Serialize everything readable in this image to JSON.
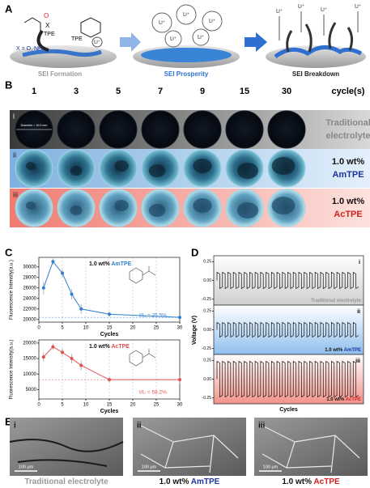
{
  "panel_a": {
    "label": "A",
    "x_def": "X = O, NH",
    "tpe": [
      "TPE",
      "TPE"
    ],
    "o": "O",
    "x": "X",
    "li": [
      "Li⁺",
      "Li⁺",
      "Li⁺",
      "Li⁺",
      "Li⁺",
      "Li⁺"
    ],
    "li_down": [
      "Li⁺",
      "Li⁺",
      "Li⁺",
      "Li⁺"
    ],
    "stages": [
      "SEI Formation",
      "SEI Prosperity",
      "SEI Breakdown"
    ]
  },
  "panel_b": {
    "label": "B",
    "cycles": [
      "1",
      "3",
      "5",
      "7",
      "9",
      "15",
      "30"
    ],
    "cycles_title": "cycle(s)",
    "diameter": "Diameter = 15.0 mm",
    "rows": [
      {
        "numeral": "i",
        "line1": "Traditional",
        "line2": "electrolyte"
      },
      {
        "numeral": "ii",
        "line1": "1.0 wt%",
        "line2": "AmTPE"
      },
      {
        "numeral": "iii",
        "line1": "1.0 wt%",
        "line2": "AcTPE"
      }
    ]
  },
  "panel_c": {
    "label": "C"
  },
  "chart_data": [
    {
      "type": "line",
      "x_label": "Cycles",
      "y_label": "Fluorescence Intensity(a.u.)",
      "prefix": "1.0 wt%",
      "ratio_label": "I/I₀ = 25.5%",
      "x": [
        1,
        3,
        5,
        7,
        9,
        15,
        30
      ],
      "xlim": [
        0,
        30
      ],
      "xticks": [
        0,
        5,
        10,
        15,
        20,
        25,
        30
      ],
      "grid": true,
      "ylim": [
        19500,
        31800
      ],
      "yticks": [
        20000,
        22000,
        24000,
        26000,
        28000,
        30000
      ],
      "series": [
        {
          "name": "AmTPE",
          "color": "#2f7fd0",
          "values": [
            26000,
            31000,
            28800,
            24800,
            22000,
            21000,
            20400
          ],
          "errors": [
            1200,
            600,
            800,
            1000,
            900,
            500,
            300
          ]
        }
      ]
    },
    {
      "type": "line",
      "x_label": "Cycles",
      "y_label": "Fluorescence Intensity(a.u.)",
      "prefix": "1.0 wt%",
      "ratio_label": "I/I₀ = 58.2%",
      "x": [
        1,
        3,
        5,
        7,
        9,
        15,
        30
      ],
      "xlim": [
        0,
        30
      ],
      "xticks": [
        0,
        5,
        10,
        15,
        20,
        25,
        30
      ],
      "grid": true,
      "ylim": [
        2000,
        21000
      ],
      "yticks": [
        5000,
        10000,
        15000,
        20000
      ],
      "series": [
        {
          "name": "AcTPE",
          "color": "#e05050",
          "values": [
            15500,
            18800,
            17000,
            15000,
            12800,
            8200,
            8200
          ],
          "errors": [
            1500,
            1000,
            1200,
            1500,
            1600,
            900,
            1300
          ]
        }
      ]
    }
  ],
  "panel_d": {
    "label": "D",
    "y_label": "Voltage (V)",
    "x_label": "Cycles",
    "ylim": [
      -0.33,
      0.33
    ],
    "yticks": [
      -0.25,
      {
        "value": 0,
        "label": "0.00"
      },
      0.25
    ],
    "subplots": [
      {
        "numeral": "i",
        "name": "Traditional electrolyte"
      },
      {
        "numeral": "ii",
        "prefix": "1.0 wt%",
        "name": "AmTPE"
      },
      {
        "numeral": "iii",
        "prefix": "1.0 wt%",
        "name": "AcTPE"
      }
    ]
  },
  "panel_e": {
    "label": "E",
    "images": [
      {
        "numeral": "i",
        "scale": "100 μm",
        "caption": "Traditional electrolyte"
      },
      {
        "numeral": "ii",
        "scale": "100 μm",
        "prefix": "1.0 wt%",
        "caption": "AmTPE"
      },
      {
        "numeral": "iii",
        "scale": "100 μm",
        "prefix": "1.0 wt%",
        "caption": "AcTPE"
      }
    ]
  }
}
